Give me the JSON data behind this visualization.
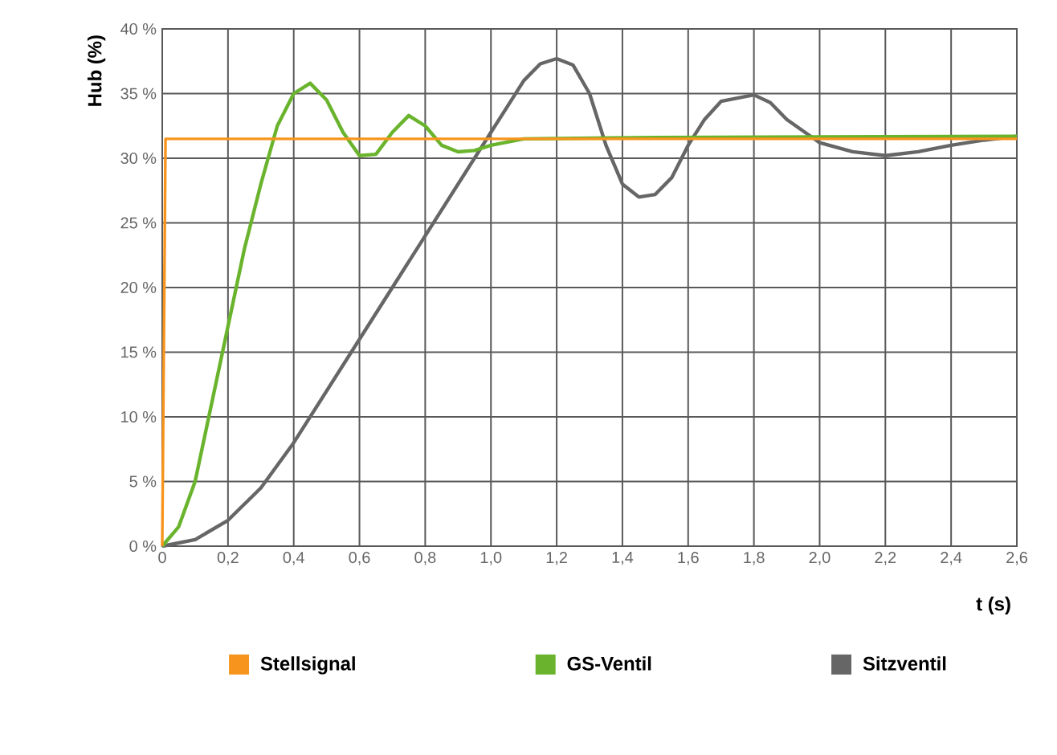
{
  "chart_data": {
    "type": "line",
    "xlabel": "t (s)",
    "ylabel": "Hub (%)",
    "xlim": [
      0,
      2.6
    ],
    "ylim": [
      0,
      40
    ],
    "xticks": [
      0,
      {
        "value": 0.2,
        "label": "0,2"
      },
      {
        "value": 0.4,
        "label": "0,4"
      },
      {
        "value": 0.6,
        "label": "0,6"
      },
      {
        "value": 0.8,
        "label": "0,8"
      },
      {
        "value": 1.0,
        "label": "1,0"
      },
      {
        "value": 1.2,
        "label": "1,2"
      },
      {
        "value": 1.4,
        "label": "1,4"
      },
      {
        "value": 1.6,
        "label": "1,6"
      },
      {
        "value": 1.8,
        "label": "1,8"
      },
      {
        "value": 2.0,
        "label": "2,0"
      },
      {
        "value": 2.2,
        "label": "2,2"
      },
      {
        "value": 2.4,
        "label": "2,4"
      },
      {
        "value": 2.6,
        "label": "2,6"
      }
    ],
    "yticks": [
      {
        "value": 0,
        "label": "0 %"
      },
      {
        "value": 5,
        "label": "5 %"
      },
      {
        "value": 10,
        "label": "10 %"
      },
      {
        "value": 15,
        "label": "15 %"
      },
      {
        "value": 20,
        "label": "20 %"
      },
      {
        "value": 25,
        "label": "25 %"
      },
      {
        "value": 30,
        "label": "30 %"
      },
      {
        "value": 35,
        "label": "35 %"
      },
      {
        "value": 40,
        "label": "40 %"
      }
    ],
    "grid": true,
    "legend": "bottom",
    "marker": "none",
    "line_style": "solid",
    "series": [
      {
        "name": "Stellsignal",
        "color": "#f7941d",
        "x": [
          0,
          0.01,
          2.6
        ],
        "values": [
          0,
          31.5,
          31.5
        ]
      },
      {
        "name": "GS-Ventil",
        "color": "#6ab42d",
        "x": [
          0,
          0.05,
          0.1,
          0.15,
          0.2,
          0.25,
          0.3,
          0.35,
          0.4,
          0.45,
          0.5,
          0.55,
          0.6,
          0.65,
          0.7,
          0.75,
          0.8,
          0.85,
          0.9,
          0.95,
          1.0,
          1.1,
          1.5,
          2.6
        ],
        "values": [
          0,
          1.5,
          5,
          11,
          17,
          23,
          28,
          32.5,
          35,
          35.8,
          34.5,
          32,
          30.2,
          30.3,
          32,
          33.3,
          32.5,
          31,
          30.5,
          30.6,
          31,
          31.5,
          31.6,
          31.7
        ]
      },
      {
        "name": "Sitzventil",
        "color": "#666666",
        "x": [
          0,
          0.1,
          0.2,
          0.3,
          0.4,
          0.5,
          0.6,
          0.7,
          0.8,
          0.9,
          1.0,
          1.05,
          1.1,
          1.15,
          1.2,
          1.25,
          1.3,
          1.35,
          1.4,
          1.45,
          1.5,
          1.55,
          1.6,
          1.65,
          1.7,
          1.8,
          1.85,
          1.9,
          2.0,
          2.1,
          2.2,
          2.3,
          2.4,
          2.5,
          2.6
        ],
        "values": [
          0,
          0.5,
          2,
          4.5,
          8,
          12,
          16,
          20,
          24,
          28,
          32,
          34,
          36,
          37.3,
          37.7,
          37.2,
          35,
          31,
          28,
          27,
          27.2,
          28.5,
          31,
          33,
          34.4,
          34.9,
          34.3,
          33,
          31.2,
          30.5,
          30.2,
          30.5,
          31,
          31.4,
          31.7
        ]
      }
    ]
  }
}
